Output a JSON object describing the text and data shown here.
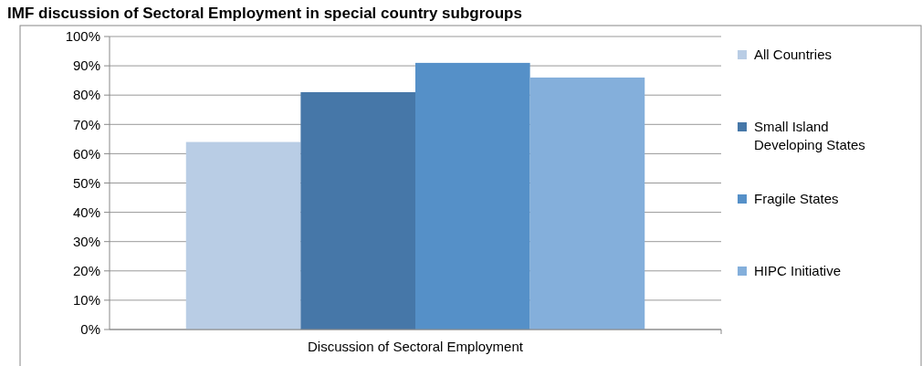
{
  "chart_data": {
    "type": "bar",
    "title": "IMF discussion of Sectoral Employment in special country subgroups",
    "categories": [
      "Discussion of Sectoral Employment"
    ],
    "series": [
      {
        "name": "All Countries",
        "color": "#b9cde5",
        "values": [
          0.64
        ]
      },
      {
        "name": "Small Island Developing States",
        "color": "#4677a8",
        "values": [
          0.81
        ]
      },
      {
        "name": "Fragile States",
        "color": "#5590c8",
        "values": [
          0.91
        ]
      },
      {
        "name": "HIPC Initiative",
        "color": "#84afdb",
        "values": [
          0.86
        ]
      }
    ],
    "ylim": [
      0,
      1
    ],
    "yticks": [
      {
        "value": 0,
        "label": "0%"
      },
      {
        "value": 0.1,
        "label": "10%"
      },
      {
        "value": 0.2,
        "label": "20%"
      },
      {
        "value": 0.3,
        "label": "30%"
      },
      {
        "value": 0.4,
        "label": "40%"
      },
      {
        "value": 0.5,
        "label": "50%"
      },
      {
        "value": 0.6,
        "label": "60%"
      },
      {
        "value": 0.7,
        "label": "70%"
      },
      {
        "value": 0.8,
        "label": "80%"
      },
      {
        "value": 0.9,
        "label": "90%"
      },
      {
        "value": 1,
        "label": "100%"
      }
    ],
    "grid": "y",
    "legend": "right"
  }
}
